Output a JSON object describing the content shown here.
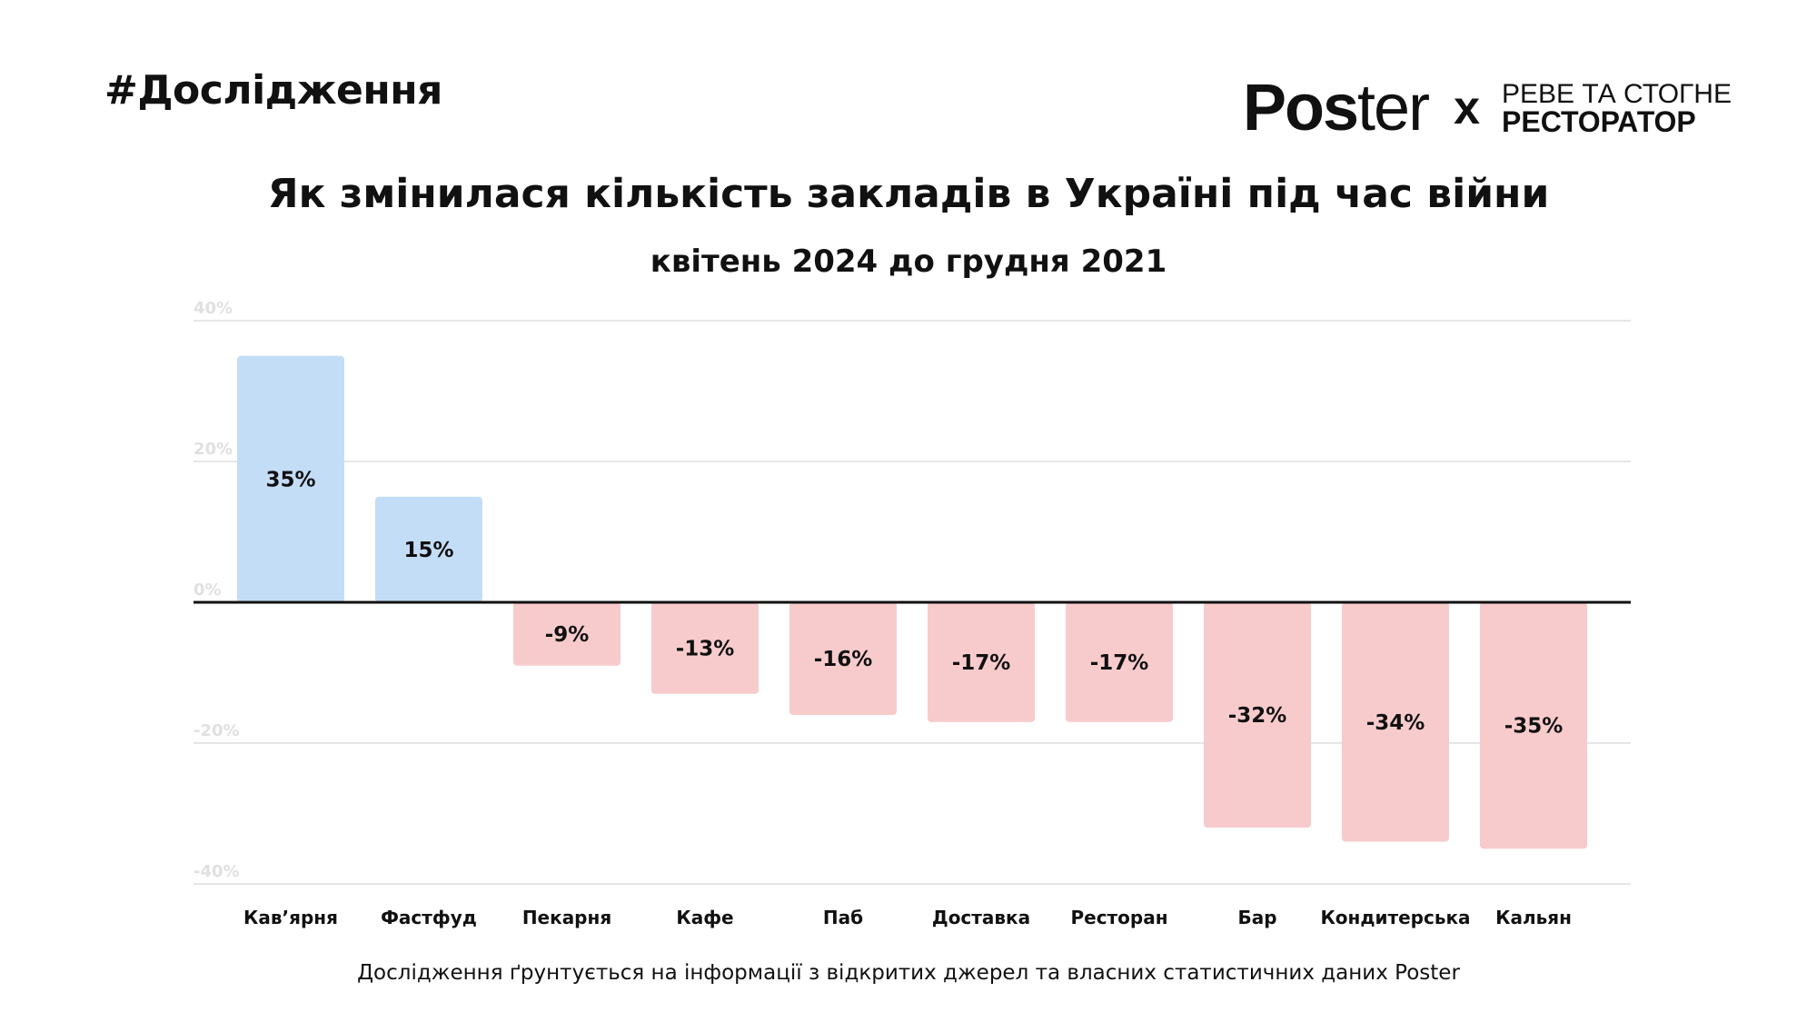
{
  "header": {
    "hashtag": "#Дослідження",
    "logo": {
      "brand_bold": "Pos",
      "brand_light": "ter",
      "separator": "x",
      "partner_line1": "РЕВЕ ТА СТОГНЕ",
      "partner_line2": "РЕСТОРАТОР"
    }
  },
  "footnote": "Дослідження ґрунтується на інформації з відкритих джерел та власних статистичних даних Poster",
  "chart_data": {
    "type": "bar",
    "title": "Як змінилася кількість закладів в Україні під час війни",
    "subtitle": "квітень 2024 до грудня 2021",
    "xlabel": "",
    "ylabel": "",
    "ylim": [
      -40,
      40
    ],
    "yticks": [
      40,
      20,
      0,
      -20,
      -40
    ],
    "ytick_labels": [
      "40%",
      "20%",
      "0%",
      "-20%",
      "-40%"
    ],
    "grid": true,
    "categories": [
      "Кав’ярня",
      "Фастфуд",
      "Пекарня",
      "Кафе",
      "Паб",
      "Доставка",
      "Ресторан",
      "Бар",
      "Кондитерська",
      "Кальян"
    ],
    "values": [
      35,
      15,
      -9,
      -13,
      -16,
      -17,
      -17,
      -32,
      -34,
      -35
    ],
    "data_labels": [
      "35%",
      "15%",
      "-9%",
      "-13%",
      "-16%",
      "-17%",
      "-17%",
      "-32%",
      "-34%",
      "-35%"
    ],
    "colors": {
      "positive": "#c4ddf7",
      "negative": "#f7cbcc",
      "zero_line": "#111111",
      "grid": "#e6e6e6"
    }
  }
}
